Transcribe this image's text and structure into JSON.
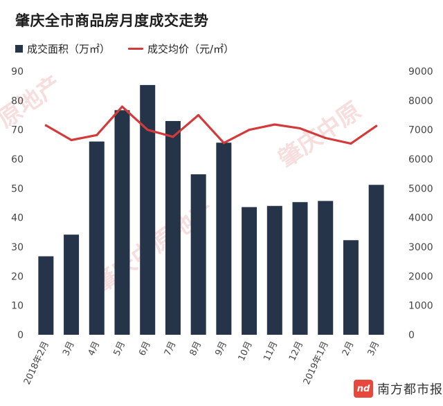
{
  "title": "肇庆全市商品房月度成交走势",
  "legend": {
    "bar_label": "成交面积（万㎡）",
    "line_label": "成交均价（元/㎡）"
  },
  "colors": {
    "bar": "#253448",
    "line": "#d33a3a",
    "axis_text": "#444444",
    "gridline": "#d9d9d9"
  },
  "watermark": {
    "text_a": "肇庆中原地产",
    "text_b": "肇庆中原",
    "text_c": "原地产"
  },
  "brand": {
    "logo_text": "nd",
    "name": "南方都市报"
  },
  "chart_data": {
    "type": "bar",
    "categories": [
      "2018年2月",
      "3月",
      "4月",
      "5月",
      "6月",
      "7月",
      "8月",
      "9月",
      "10月",
      "11月",
      "12月",
      "2019年1月",
      "2月",
      "3月"
    ],
    "series": [
      {
        "name": "成交面积（万㎡）",
        "type": "bar",
        "axis": "left",
        "values": [
          26.8,
          34.2,
          66.0,
          76.7,
          85.3,
          73.0,
          54.8,
          65.6,
          43.6,
          44.0,
          45.3,
          45.7,
          32.3,
          51.2
        ]
      },
      {
        "name": "成交均价（元/㎡）",
        "type": "line",
        "axis": "right",
        "values": [
          7150,
          6650,
          6820,
          7790,
          7000,
          6760,
          7500,
          6550,
          7000,
          7180,
          7050,
          6720,
          6530,
          7130
        ]
      }
    ],
    "y_left": {
      "min": 0,
      "max": 90,
      "ticks": [
        0,
        10,
        20,
        30,
        40,
        50,
        60,
        70,
        80,
        90
      ]
    },
    "y_right": {
      "min": 0,
      "max": 9000,
      "ticks": [
        0,
        1000,
        2000,
        3000,
        4000,
        5000,
        6000,
        7000,
        8000,
        9000
      ]
    },
    "grid": false,
    "legend_position": "top-left"
  }
}
